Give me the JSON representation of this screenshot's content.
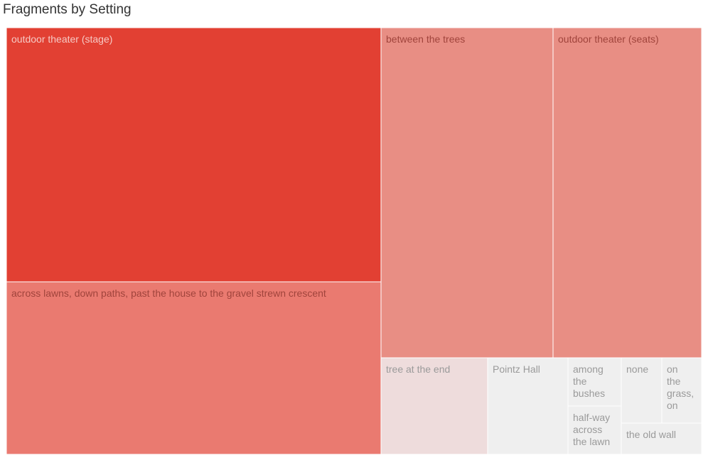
{
  "chart_data": {
    "type": "treemap",
    "title": "Fragments by Setting",
    "colors": {
      "high": "#e24033",
      "mid": "#ea7a70",
      "mid_light": "#e88e84",
      "low": "#eedcdc",
      "none": "#efefef",
      "label_dark": "#a0443c",
      "label_light": "#f6c9c4",
      "label_gray": "#9a9a9a",
      "border": "#ffffff"
    },
    "items": [
      {
        "label": "outdoor theater (stage)",
        "value": 19.0,
        "color_level": "high"
      },
      {
        "label": "across lawns, down paths, past the house to the gravel strewn crescent",
        "value": 8.6,
        "color_level": "mid"
      },
      {
        "label": "between the trees",
        "value": 7.8,
        "color_level": "mid_light"
      },
      {
        "label": "outdoor theater (seats)",
        "value": 6.8,
        "color_level": "mid_light"
      },
      {
        "label": "tree at the end",
        "value": 1.4,
        "color_level": "low"
      },
      {
        "label": "Pointz Hall",
        "value": 1.1,
        "color_level": "none"
      },
      {
        "label": "among the bushes",
        "value": 0.5,
        "color_level": "none"
      },
      {
        "label": "half-way across the lawn",
        "value": 0.5,
        "color_level": "none"
      },
      {
        "label": "none",
        "value": 0.4,
        "color_level": "none"
      },
      {
        "label": "on the grass, on",
        "value": 0.4,
        "color_level": "none"
      },
      {
        "label": "the old wall",
        "value": 0.35,
        "color_level": "none"
      }
    ]
  }
}
